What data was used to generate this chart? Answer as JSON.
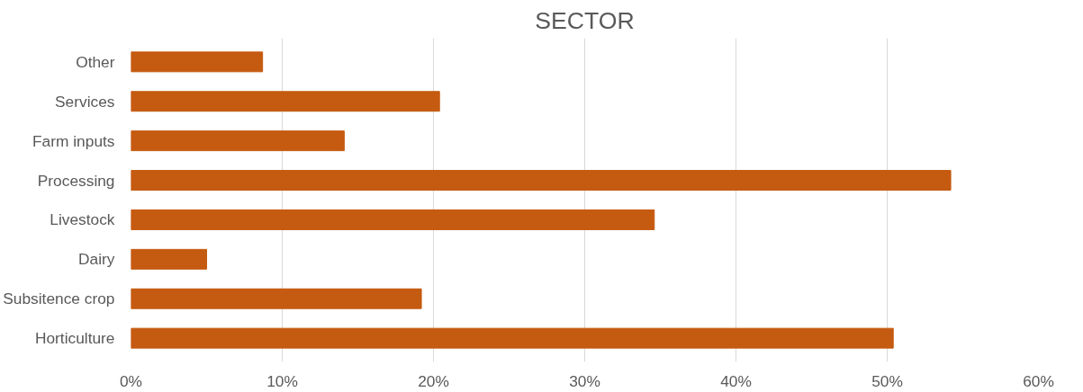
{
  "chart_data": {
    "type": "bar",
    "orientation": "horizontal",
    "title": "SECTOR",
    "categories": [
      "Other",
      "Services",
      "Farm inputs",
      "Processing",
      "Livestock",
      "Dairy",
      "Subsitence crop",
      "Horticulture"
    ],
    "values": [
      8.7,
      20.4,
      14.1,
      54.2,
      34.6,
      5.0,
      19.2,
      50.4
    ],
    "color": "#c55a11",
    "xlim": [
      0,
      60
    ],
    "xticks": [
      {
        "value": 0,
        "label": "0%"
      },
      {
        "value": 10,
        "label": "10%"
      },
      {
        "value": 20,
        "label": "20%"
      },
      {
        "value": 30,
        "label": "30%"
      },
      {
        "value": 40,
        "label": "40%"
      },
      {
        "value": 50,
        "label": "50%"
      },
      {
        "value": 60,
        "label": "60%"
      }
    ],
    "grid": "x"
  }
}
